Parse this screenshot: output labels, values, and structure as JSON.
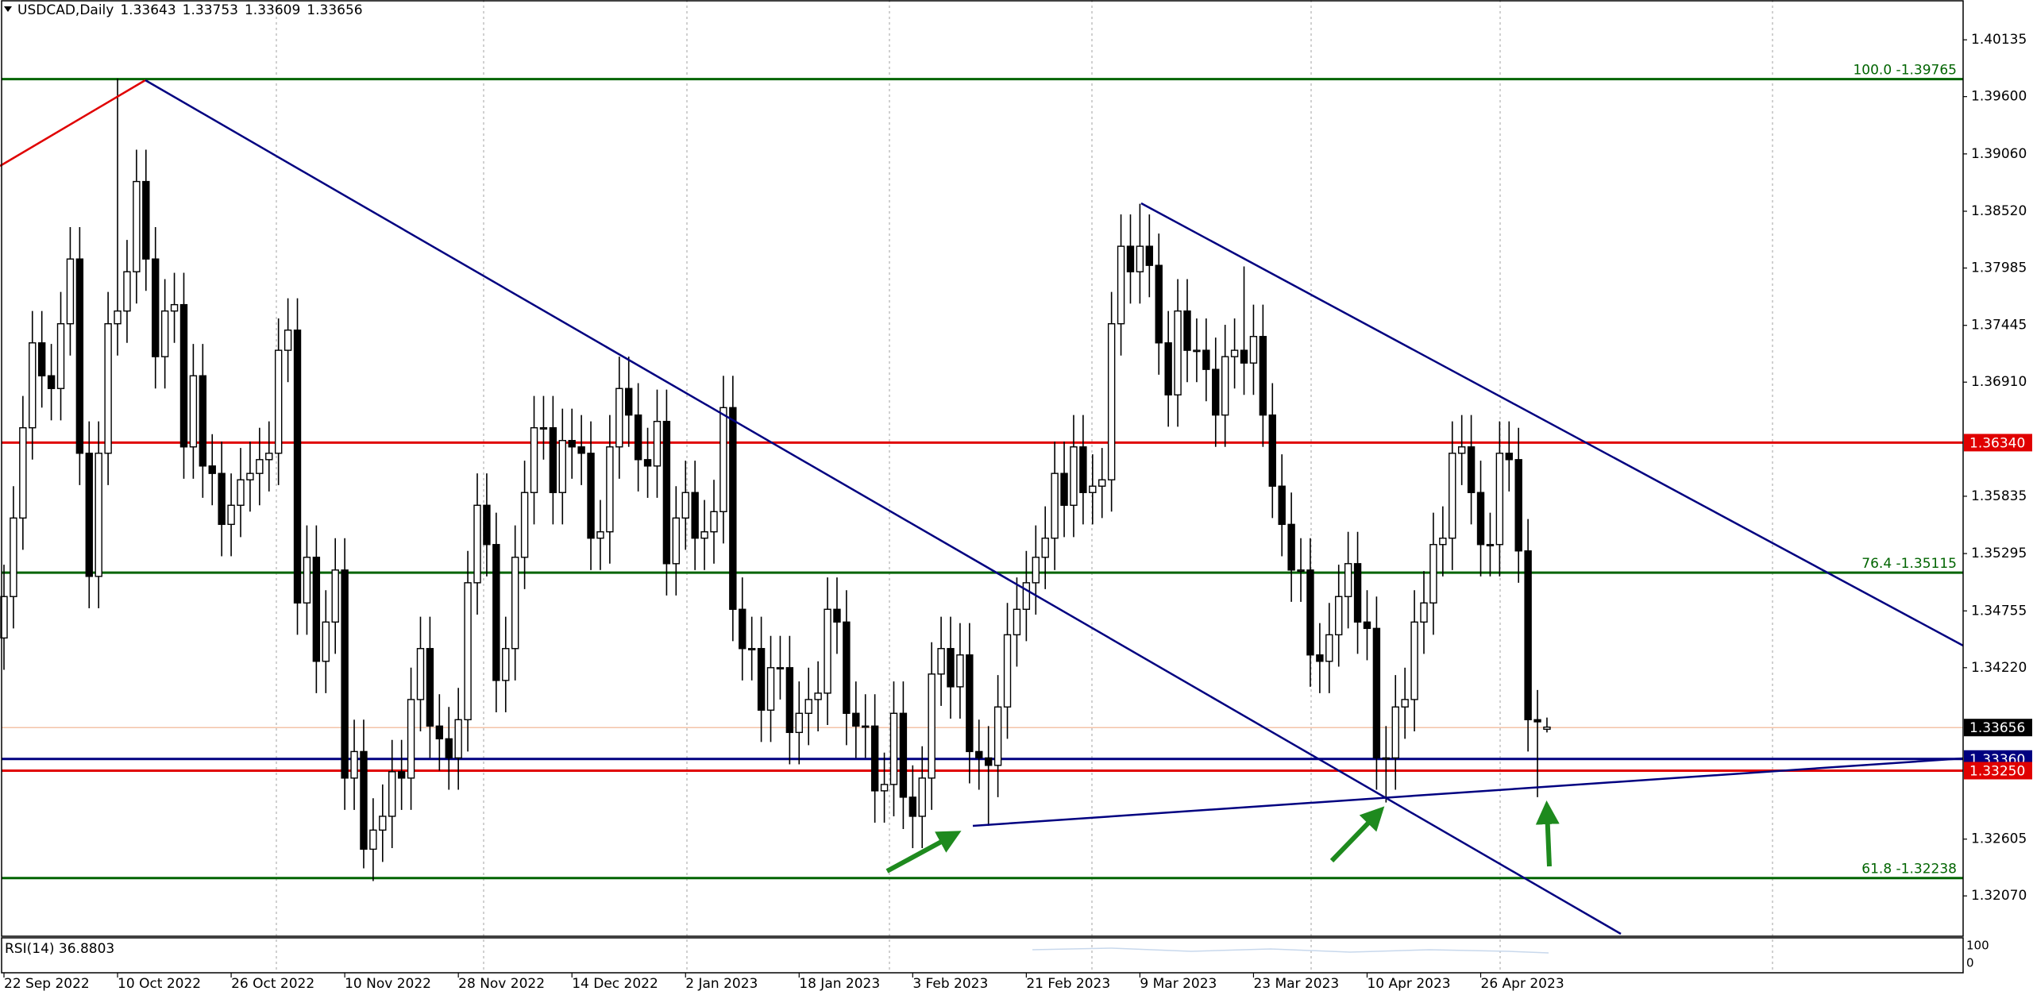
{
  "chart_data": {
    "type": "candlestick",
    "title": "USDCAD,Daily",
    "quote": [
      1.33643,
      1.33753,
      1.33609,
      1.33656
    ],
    "indicator": {
      "name": "RSI(14)",
      "value": 36.8803
    },
    "ylim": [
      1.3169,
      1.4051
    ],
    "yticks": [
      1.40135,
      {
        "value": 1.396,
        "label": "1.39600"
      },
      {
        "value": 1.3906,
        "label": "1.39060"
      },
      {
        "value": 1.3852,
        "label": "1.38520"
      },
      1.37985,
      1.37445,
      {
        "value": 1.3691,
        "label": "1.36910"
      },
      1.35835,
      1.35295,
      1.34755,
      {
        "value": 1.3422,
        "label": "1.34220"
      },
      1.32605,
      {
        "value": 1.3207,
        "label": "1.32070"
      }
    ],
    "fib_levels": [
      {
        "label": "100.0 -1.39765",
        "value": 1.39765,
        "color": "#006400"
      },
      {
        "label": "76.4 -1.35115",
        "value": 1.35115,
        "color": "#006400"
      },
      {
        "label": "61.8 -1.32238",
        "value": 1.32238,
        "color": "#006400"
      }
    ],
    "price_lines": [
      {
        "value": 1.3634,
        "label": "1.36340",
        "color": "#e00000"
      },
      {
        "value": 1.3336,
        "label": "1.33360",
        "color": "#000080"
      },
      {
        "value": 1.3325,
        "label": "1.33250",
        "color": "#e00000"
      }
    ],
    "current_price": {
      "value": 1.33656,
      "color": "#000000"
    },
    "categories": [
      "22 Sep 2022",
      null,
      null,
      null,
      null,
      null,
      null,
      null,
      null,
      null,
      null,
      null,
      "10 Oct 2022",
      null,
      null,
      null,
      null,
      null,
      null,
      null,
      null,
      null,
      null,
      null,
      "26 Oct 2022",
      null,
      null,
      null,
      null,
      null,
      null,
      null,
      null,
      null,
      null,
      null,
      "10 Nov 2022",
      null,
      null,
      null,
      null,
      null,
      null,
      null,
      null,
      null,
      null,
      null,
      "28 Nov 2022",
      null,
      null,
      null,
      null,
      null,
      null,
      null,
      null,
      null,
      null,
      null,
      "14 Dec 2022",
      null,
      null,
      null,
      null,
      null,
      null,
      null,
      null,
      null,
      null,
      null,
      "2 Jan 2023",
      null,
      null,
      null,
      null,
      null,
      null,
      null,
      null,
      null,
      null,
      null,
      "18 Jan 2023",
      null,
      null,
      null,
      null,
      null,
      null,
      null,
      null,
      null,
      null,
      null,
      "3 Feb 2023",
      null,
      null,
      null,
      null,
      null,
      null,
      null,
      null,
      null,
      null,
      null,
      "21 Feb 2023",
      null,
      null,
      null,
      null,
      null,
      null,
      null,
      null,
      null,
      null,
      null,
      "9 Mar 2023",
      null,
      null,
      null,
      null,
      null,
      null,
      null,
      null,
      null,
      null,
      null,
      "23 Mar 2023",
      null,
      null,
      null,
      null,
      null,
      null,
      null,
      null,
      null,
      null,
      null,
      "10 Apr 2023",
      null,
      null,
      null,
      null,
      null,
      null,
      null,
      null,
      null,
      null,
      null,
      "26 Apr 2023",
      null,
      null,
      null,
      null,
      null,
      null,
      null
    ],
    "ohlc": [
      [
        1.345,
        1.3519,
        1.342,
        1.3489
      ],
      [
        1.3489,
        1.3593,
        1.3459,
        1.3563
      ],
      [
        1.3563,
        1.3678,
        1.3533,
        1.3648
      ],
      [
        1.3648,
        1.3758,
        1.3618,
        1.3728
      ],
      [
        1.3728,
        1.3758,
        1.3667,
        1.3697
      ],
      [
        1.3697,
        1.3727,
        1.3655,
        1.3685
      ],
      [
        1.3685,
        1.3776,
        1.3655,
        1.3746
      ],
      [
        1.3746,
        1.3837,
        1.3716,
        1.3807
      ],
      [
        1.3807,
        1.3837,
        1.3594,
        1.3624
      ],
      [
        1.3624,
        1.3654,
        1.3478,
        1.3508
      ],
      [
        1.3508,
        1.3654,
        1.3478,
        1.3624
      ],
      [
        1.3624,
        1.3776,
        1.3594,
        1.3746
      ],
      [
        1.3746,
        1.3977,
        1.3716,
        1.3758
      ],
      [
        1.3758,
        1.3825,
        1.3728,
        1.3795
      ],
      [
        1.3795,
        1.391,
        1.3765,
        1.388
      ],
      [
        1.388,
        1.391,
        1.3777,
        1.3807
      ],
      [
        1.3807,
        1.3837,
        1.3685,
        1.3715
      ],
      [
        1.3715,
        1.3788,
        1.3685,
        1.3758
      ],
      [
        1.3758,
        1.3794,
        1.3728,
        1.3764
      ],
      [
        1.3764,
        1.3794,
        1.36,
        1.363
      ],
      [
        1.363,
        1.3727,
        1.36,
        1.3697
      ],
      [
        1.3697,
        1.3727,
        1.3582,
        1.3612
      ],
      [
        1.3612,
        1.3642,
        1.3575,
        1.3605
      ],
      [
        1.3605,
        1.3635,
        1.3527,
        1.3557
      ],
      [
        1.3557,
        1.3605,
        1.3527,
        1.3575
      ],
      [
        1.3575,
        1.3629,
        1.3545,
        1.3599
      ],
      [
        1.3599,
        1.3635,
        1.3569,
        1.3605
      ],
      [
        1.3605,
        1.3648,
        1.3575,
        1.3618
      ],
      [
        1.3618,
        1.3654,
        1.3588,
        1.3624
      ],
      [
        1.3624,
        1.3751,
        1.3594,
        1.3721
      ],
      [
        1.3721,
        1.377,
        1.3691,
        1.374
      ],
      [
        1.374,
        1.377,
        1.3453,
        1.3483
      ],
      [
        1.3483,
        1.3556,
        1.3453,
        1.3526
      ],
      [
        1.3526,
        1.3556,
        1.3398,
        1.3428
      ],
      [
        1.3428,
        1.3495,
        1.3398,
        1.3465
      ],
      [
        1.3465,
        1.3544,
        1.3435,
        1.3514
      ],
      [
        1.3514,
        1.3544,
        1.3288,
        1.3318
      ],
      [
        1.3318,
        1.3373,
        1.3288,
        1.3343
      ],
      [
        1.3343,
        1.3373,
        1.3233,
        1.3251
      ],
      [
        1.3251,
        1.3299,
        1.3221,
        1.3269
      ],
      [
        1.3269,
        1.3312,
        1.3239,
        1.3282
      ],
      [
        1.3282,
        1.3354,
        1.3252,
        1.3324
      ],
      [
        1.3324,
        1.3354,
        1.3288,
        1.3318
      ],
      [
        1.3318,
        1.3422,
        1.3288,
        1.3392
      ],
      [
        1.3392,
        1.347,
        1.3362,
        1.344
      ],
      [
        1.344,
        1.347,
        1.3337,
        1.3367
      ],
      [
        1.3367,
        1.3397,
        1.3325,
        1.3355
      ],
      [
        1.3355,
        1.3385,
        1.3307,
        1.3337
      ],
      [
        1.3337,
        1.3403,
        1.3307,
        1.3373
      ],
      [
        1.3373,
        1.3532,
        1.3343,
        1.3502
      ],
      [
        1.3502,
        1.3605,
        1.3472,
        1.3575
      ],
      [
        1.3575,
        1.3605,
        1.3508,
        1.3538
      ],
      [
        1.3538,
        1.3568,
        1.338,
        1.341
      ],
      [
        1.341,
        1.347,
        1.338,
        1.344
      ],
      [
        1.344,
        1.3556,
        1.341,
        1.3526
      ],
      [
        1.3526,
        1.3617,
        1.3496,
        1.3587
      ],
      [
        1.3587,
        1.3678,
        1.3557,
        1.3648
      ],
      [
        1.3648,
        1.3678,
        1.3618,
        1.3648
      ],
      [
        1.3648,
        1.3678,
        1.3557,
        1.3587
      ],
      [
        1.3587,
        1.3666,
        1.3557,
        1.3636
      ],
      [
        1.3636,
        1.3666,
        1.36,
        1.363
      ],
      [
        1.363,
        1.366,
        1.3594,
        1.3624
      ],
      [
        1.3624,
        1.3654,
        1.3514,
        1.3544
      ],
      [
        1.3544,
        1.358,
        1.3514,
        1.355
      ],
      [
        1.355,
        1.366,
        1.352,
        1.363
      ],
      [
        1.363,
        1.3715,
        1.36,
        1.3685
      ],
      [
        1.3685,
        1.3715,
        1.363,
        1.366
      ],
      [
        1.366,
        1.369,
        1.3588,
        1.3618
      ],
      [
        1.3618,
        1.3648,
        1.3582,
        1.3612
      ],
      [
        1.3612,
        1.3684,
        1.3582,
        1.3654
      ],
      [
        1.3654,
        1.3684,
        1.349,
        1.352
      ],
      [
        1.352,
        1.3593,
        1.349,
        1.3563
      ],
      [
        1.3563,
        1.3617,
        1.3533,
        1.3587
      ],
      [
        1.3587,
        1.3617,
        1.3514,
        1.3544
      ],
      [
        1.3544,
        1.358,
        1.3514,
        1.355
      ],
      [
        1.355,
        1.3599,
        1.352,
        1.3569
      ],
      [
        1.3569,
        1.3697,
        1.3539,
        1.3667
      ],
      [
        1.3667,
        1.3697,
        1.3447,
        1.3477
      ],
      [
        1.3477,
        1.3507,
        1.341,
        1.344
      ],
      [
        1.344,
        1.347,
        1.341,
        1.344
      ],
      [
        1.344,
        1.347,
        1.3352,
        1.3382
      ],
      [
        1.3382,
        1.3452,
        1.3352,
        1.3422
      ],
      [
        1.3422,
        1.3452,
        1.3392,
        1.3422
      ],
      [
        1.3422,
        1.3452,
        1.3331,
        1.3361
      ],
      [
        1.3361,
        1.3409,
        1.3331,
        1.3379
      ],
      [
        1.3379,
        1.3422,
        1.3349,
        1.3392
      ],
      [
        1.3392,
        1.3428,
        1.3362,
        1.3398
      ],
      [
        1.3398,
        1.3507,
        1.3368,
        1.3477
      ],
      [
        1.3477,
        1.3507,
        1.3435,
        1.3465
      ],
      [
        1.3465,
        1.3495,
        1.3349,
        1.3379
      ],
      [
        1.3379,
        1.3409,
        1.3337,
        1.3367
      ],
      [
        1.3367,
        1.3397,
        1.3337,
        1.3367
      ],
      [
        1.3367,
        1.3397,
        1.3276,
        1.3306
      ],
      [
        1.3306,
        1.3342,
        1.3276,
        1.3312
      ],
      [
        1.3312,
        1.3409,
        1.3282,
        1.3379
      ],
      [
        1.3379,
        1.3409,
        1.327,
        1.33
      ],
      [
        1.33,
        1.333,
        1.3252,
        1.3282
      ],
      [
        1.3282,
        1.3348,
        1.3252,
        1.3318
      ],
      [
        1.3318,
        1.3446,
        1.3288,
        1.3416
      ],
      [
        1.3416,
        1.347,
        1.3386,
        1.344
      ],
      [
        1.344,
        1.347,
        1.3374,
        1.3404
      ],
      [
        1.3404,
        1.3464,
        1.3374,
        1.3434
      ],
      [
        1.3434,
        1.3464,
        1.3313,
        1.3343
      ],
      [
        1.3343,
        1.3373,
        1.3307,
        1.3337
      ],
      [
        1.3337,
        1.3367,
        1.3273,
        1.333
      ],
      [
        1.333,
        1.3415,
        1.33,
        1.3385
      ],
      [
        1.3385,
        1.3483,
        1.3355,
        1.3453
      ],
      [
        1.3453,
        1.3507,
        1.3423,
        1.3477
      ],
      [
        1.3477,
        1.3532,
        1.3447,
        1.3502
      ],
      [
        1.3502,
        1.3556,
        1.3472,
        1.3526
      ],
      [
        1.3526,
        1.3574,
        1.3496,
        1.3544
      ],
      [
        1.3544,
        1.3635,
        1.3514,
        1.3605
      ],
      [
        1.3605,
        1.3635,
        1.3545,
        1.3575
      ],
      [
        1.3575,
        1.366,
        1.3545,
        1.363
      ],
      [
        1.363,
        1.366,
        1.3557,
        1.3587
      ],
      [
        1.3587,
        1.3623,
        1.3557,
        1.3593
      ],
      [
        1.3593,
        1.3629,
        1.3563,
        1.3599
      ],
      [
        1.3599,
        1.3776,
        1.3569,
        1.3746
      ],
      [
        1.3746,
        1.3849,
        1.3716,
        1.3819
      ],
      [
        1.3819,
        1.3849,
        1.3765,
        1.3795
      ],
      [
        1.3795,
        1.3859,
        1.3765,
        1.3819
      ],
      [
        1.3819,
        1.3849,
        1.3771,
        1.3801
      ],
      [
        1.3801,
        1.3831,
        1.3698,
        1.3728
      ],
      [
        1.3728,
        1.3758,
        1.3649,
        1.3679
      ],
      [
        1.3679,
        1.3788,
        1.3649,
        1.3758
      ],
      [
        1.3758,
        1.3788,
        1.3691,
        1.3721
      ],
      [
        1.3721,
        1.3751,
        1.3691,
        1.3721
      ],
      [
        1.3721,
        1.3751,
        1.3673,
        1.3703
      ],
      [
        1.3703,
        1.3733,
        1.363,
        1.366
      ],
      [
        1.366,
        1.3745,
        1.363,
        1.3715
      ],
      [
        1.3715,
        1.3751,
        1.3685,
        1.3721
      ],
      [
        1.3721,
        1.38,
        1.3679,
        1.3709
      ],
      [
        1.3709,
        1.3764,
        1.3679,
        1.3734
      ],
      [
        1.3734,
        1.3764,
        1.363,
        1.366
      ],
      [
        1.366,
        1.369,
        1.3563,
        1.3593
      ],
      [
        1.3593,
        1.3623,
        1.3527,
        1.3557
      ],
      [
        1.3557,
        1.3587,
        1.3484,
        1.3514
      ],
      [
        1.3514,
        1.3544,
        1.3484,
        1.3514
      ],
      [
        1.3514,
        1.3544,
        1.3404,
        1.3434
      ],
      [
        1.3434,
        1.3464,
        1.3398,
        1.3428
      ],
      [
        1.3428,
        1.3483,
        1.3398,
        1.3453
      ],
      [
        1.3453,
        1.3519,
        1.3423,
        1.3489
      ],
      [
        1.3489,
        1.355,
        1.3459,
        1.352
      ],
      [
        1.352,
        1.355,
        1.3435,
        1.3465
      ],
      [
        1.3465,
        1.3495,
        1.3429,
        1.3459
      ],
      [
        1.3459,
        1.3489,
        1.3307,
        1.3337
      ],
      [
        1.3337,
        1.3367,
        1.3295,
        1.3337
      ],
      [
        1.3337,
        1.3415,
        1.3307,
        1.3385
      ],
      [
        1.3385,
        1.3422,
        1.3355,
        1.3392
      ],
      [
        1.3392,
        1.3495,
        1.3362,
        1.3465
      ],
      [
        1.3465,
        1.3513,
        1.3435,
        1.3483
      ],
      [
        1.3483,
        1.3568,
        1.3453,
        1.3538
      ],
      [
        1.3538,
        1.3574,
        1.3508,
        1.3544
      ],
      [
        1.3544,
        1.3654,
        1.3514,
        1.3624
      ],
      [
        1.3624,
        1.366,
        1.3594,
        1.363
      ],
      [
        1.363,
        1.366,
        1.3557,
        1.3587
      ],
      [
        1.3587,
        1.3617,
        1.3508,
        1.3538
      ],
      [
        1.3538,
        1.3568,
        1.3508,
        1.3538
      ],
      [
        1.3538,
        1.3654,
        1.3508,
        1.3624
      ],
      [
        1.3624,
        1.3654,
        1.3588,
        1.3618
      ],
      [
        1.3618,
        1.3648,
        1.3502,
        1.3532
      ],
      [
        1.3532,
        1.3562,
        1.3343,
        1.3373
      ],
      [
        1.3373,
        1.3401,
        1.33,
        1.3371
      ],
      [
        1.3364,
        1.3375,
        1.3361,
        1.3366
      ]
    ]
  }
}
